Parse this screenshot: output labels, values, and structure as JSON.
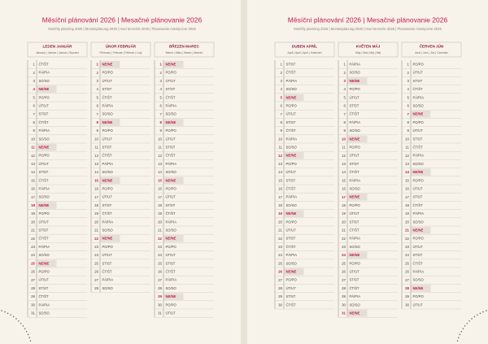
{
  "pages": [
    {
      "title": "Měsíční plánování 2026 | Mesačné plánovanie 2026",
      "subtitle": "Monthly planning 2026 | Monatsplanung 2026 | Havi tervezés 2026 | Planowanie miesięczne 2026",
      "months": [
        {
          "name": "LEDEN JANUÁR",
          "subname": "January | Januar | Január | Styczeń",
          "days": [
            {
              "n": 1,
              "d": "ČT/ŠT"
            },
            {
              "n": 2,
              "d": "PÁ/PIA"
            },
            {
              "n": 3,
              "d": "SO/SO"
            },
            {
              "n": 4,
              "d": "NE/NE",
              "sun": true
            },
            {
              "n": 5,
              "d": "PO/PO"
            },
            {
              "n": 6,
              "d": "ÚT/UT"
            },
            {
              "n": 7,
              "d": "ST/ST"
            },
            {
              "n": 8,
              "d": "ČT/ŠT"
            },
            {
              "n": 9,
              "d": "PÁ/PIA"
            },
            {
              "n": 10,
              "d": "SO/SO"
            },
            {
              "n": 11,
              "d": "NE/NE",
              "sun": true
            },
            {
              "n": 12,
              "d": "PO/PO"
            },
            {
              "n": 13,
              "d": "ÚT/UT"
            },
            {
              "n": 14,
              "d": "ST/ST"
            },
            {
              "n": 15,
              "d": "ČT/ŠT"
            },
            {
              "n": 16,
              "d": "PÁ/PIA"
            },
            {
              "n": 17,
              "d": "SO/SO"
            },
            {
              "n": 18,
              "d": "NE/NE",
              "sun": true
            },
            {
              "n": 19,
              "d": "PO/PO"
            },
            {
              "n": 20,
              "d": "ÚT/UT"
            },
            {
              "n": 21,
              "d": "ST/ST"
            },
            {
              "n": 22,
              "d": "ČT/ŠT"
            },
            {
              "n": 23,
              "d": "PÁ/PIA"
            },
            {
              "n": 24,
              "d": "SO/SO"
            },
            {
              "n": 25,
              "d": "NE/NE",
              "sun": true
            },
            {
              "n": 26,
              "d": "PO/PO"
            },
            {
              "n": 27,
              "d": "ÚT/UT"
            },
            {
              "n": 28,
              "d": "ST/ST"
            },
            {
              "n": 29,
              "d": "ČT/ŠT"
            },
            {
              "n": 30,
              "d": "PÁ/PIA"
            },
            {
              "n": 31,
              "d": "SO/SO"
            }
          ]
        },
        {
          "name": "ÚNOR FEBRUÁR",
          "subname": "February | Februar | Február | Luty",
          "days": [
            {
              "n": 1,
              "d": "NE/NE",
              "sun": true
            },
            {
              "n": 2,
              "d": "PO/PO"
            },
            {
              "n": 3,
              "d": "ÚT/UT"
            },
            {
              "n": 4,
              "d": "ST/ST"
            },
            {
              "n": 5,
              "d": "ČT/ŠT"
            },
            {
              "n": 6,
              "d": "PÁ/PIA"
            },
            {
              "n": 7,
              "d": "SO/SO"
            },
            {
              "n": 8,
              "d": "NE/NE",
              "sun": true
            },
            {
              "n": 9,
              "d": "PO/PO"
            },
            {
              "n": 10,
              "d": "ÚT/UT"
            },
            {
              "n": 11,
              "d": "ST/ST"
            },
            {
              "n": 12,
              "d": "ČT/ŠT"
            },
            {
              "n": 13,
              "d": "PÁ/PIA"
            },
            {
              "n": 14,
              "d": "SO/SO"
            },
            {
              "n": 15,
              "d": "NE/NE",
              "sun": true
            },
            {
              "n": 16,
              "d": "PO/PO"
            },
            {
              "n": 17,
              "d": "ÚT/UT"
            },
            {
              "n": 18,
              "d": "ST/ST"
            },
            {
              "n": 19,
              "d": "ČT/ŠT"
            },
            {
              "n": 20,
              "d": "PÁ/PIA"
            },
            {
              "n": 21,
              "d": "SO/SO"
            },
            {
              "n": 22,
              "d": "NE/NE",
              "sun": true
            },
            {
              "n": 23,
              "d": "PO/PO"
            },
            {
              "n": 24,
              "d": "ÚT/UT"
            },
            {
              "n": 25,
              "d": "ST/ST"
            },
            {
              "n": 26,
              "d": "ČT/ŠT"
            },
            {
              "n": 27,
              "d": "PÁ/PIA"
            },
            {
              "n": 28,
              "d": "SO/SO"
            }
          ]
        },
        {
          "name": "BŘEZEN MAREC",
          "subname": "March | März | Marec | Marzec",
          "days": [
            {
              "n": 1,
              "d": "NE/NE",
              "sun": true
            },
            {
              "n": 2,
              "d": "PO/PO"
            },
            {
              "n": 3,
              "d": "ÚT/UT"
            },
            {
              "n": 4,
              "d": "ST/ST"
            },
            {
              "n": 5,
              "d": "ČT/ŠT"
            },
            {
              "n": 6,
              "d": "PÁ/PIA"
            },
            {
              "n": 7,
              "d": "SO/SO"
            },
            {
              "n": 8,
              "d": "NE/NE",
              "sun": true
            },
            {
              "n": 9,
              "d": "PO/PO"
            },
            {
              "n": 10,
              "d": "ÚT/UT"
            },
            {
              "n": 11,
              "d": "ST/ST"
            },
            {
              "n": 12,
              "d": "ČT/ŠT"
            },
            {
              "n": 13,
              "d": "PÁ/PIA"
            },
            {
              "n": 14,
              "d": "SO/SO"
            },
            {
              "n": 15,
              "d": "NE/NE",
              "sun": true
            },
            {
              "n": 16,
              "d": "PO/PO"
            },
            {
              "n": 17,
              "d": "ÚT/UT"
            },
            {
              "n": 18,
              "d": "ST/ST"
            },
            {
              "n": 19,
              "d": "ČT/ŠT"
            },
            {
              "n": 20,
              "d": "PÁ/PIA"
            },
            {
              "n": 21,
              "d": "SO/SO"
            },
            {
              "n": 22,
              "d": "NE/NE",
              "sun": true
            },
            {
              "n": 23,
              "d": "PO/PO"
            },
            {
              "n": 24,
              "d": "ÚT/UT"
            },
            {
              "n": 25,
              "d": "ST/ST"
            },
            {
              "n": 26,
              "d": "ČT/ŠT"
            },
            {
              "n": 27,
              "d": "PÁ/PIA"
            },
            {
              "n": 28,
              "d": "SO/SO"
            },
            {
              "n": 29,
              "d": "NE/NE",
              "sun": true
            },
            {
              "n": 30,
              "d": "PO/PO"
            },
            {
              "n": 31,
              "d": "ÚT/UT"
            }
          ]
        }
      ]
    },
    {
      "title": "Měsíční plánování 2026 | Mesačné plánovanie 2026",
      "subtitle": "Monthly planning 2026 | Monatsplanung 2026 | Havi tervezés 2026 | Planowanie miesięczne 2026",
      "months": [
        {
          "name": "DUBEN APRÍL",
          "subname": "April | April | Apríl | Kwiecień",
          "days": [
            {
              "n": 1,
              "d": "ST/ST"
            },
            {
              "n": 2,
              "d": "ČT/ŠT"
            },
            {
              "n": 3,
              "d": "PÁ/PIA"
            },
            {
              "n": 4,
              "d": "SO/SO"
            },
            {
              "n": 5,
              "d": "NE/NE",
              "sun": true
            },
            {
              "n": 6,
              "d": "PO/PO"
            },
            {
              "n": 7,
              "d": "ÚT/UT"
            },
            {
              "n": 8,
              "d": "ST/ST"
            },
            {
              "n": 9,
              "d": "ČT/ŠT"
            },
            {
              "n": 10,
              "d": "PÁ/PIA"
            },
            {
              "n": 11,
              "d": "SO/SO"
            },
            {
              "n": 12,
              "d": "NE/NE",
              "sun": true
            },
            {
              "n": 13,
              "d": "PO/PO"
            },
            {
              "n": 14,
              "d": "ÚT/UT"
            },
            {
              "n": 15,
              "d": "ST/ST"
            },
            {
              "n": 16,
              "d": "ČT/ŠT"
            },
            {
              "n": 17,
              "d": "PÁ/PIA"
            },
            {
              "n": 18,
              "d": "SO/SO"
            },
            {
              "n": 19,
              "d": "NE/NE",
              "sun": true
            },
            {
              "n": 20,
              "d": "PO/PO"
            },
            {
              "n": 21,
              "d": "ÚT/UT"
            },
            {
              "n": 22,
              "d": "ST/ST"
            },
            {
              "n": 23,
              "d": "ČT/ŠT"
            },
            {
              "n": 24,
              "d": "PÁ/PIA"
            },
            {
              "n": 25,
              "d": "SO/SO"
            },
            {
              "n": 26,
              "d": "NE/NE",
              "sun": true
            },
            {
              "n": 27,
              "d": "PO/PO"
            },
            {
              "n": 28,
              "d": "ÚT/UT"
            },
            {
              "n": 29,
              "d": "ST/ST"
            },
            {
              "n": 30,
              "d": "ČT/ŠT"
            }
          ]
        },
        {
          "name": "KVĚTEN MÁJ",
          "subname": "May | Mai | Máj | Maj",
          "days": [
            {
              "n": 1,
              "d": "PÁ/PIA"
            },
            {
              "n": 2,
              "d": "SO/SO"
            },
            {
              "n": 3,
              "d": "NE/NE",
              "sun": true
            },
            {
              "n": 4,
              "d": "PO/PO"
            },
            {
              "n": 5,
              "d": "ÚT/UT"
            },
            {
              "n": 6,
              "d": "ST/ST"
            },
            {
              "n": 7,
              "d": "ČT/ŠT"
            },
            {
              "n": 8,
              "d": "PÁ/PIA"
            },
            {
              "n": 9,
              "d": "SO/SO"
            },
            {
              "n": 10,
              "d": "NE/NE",
              "sun": true
            },
            {
              "n": 11,
              "d": "PO/PO"
            },
            {
              "n": 12,
              "d": "ÚT/UT"
            },
            {
              "n": 13,
              "d": "ST/ST"
            },
            {
              "n": 14,
              "d": "ČT/ŠT"
            },
            {
              "n": 15,
              "d": "PÁ/PIA"
            },
            {
              "n": 16,
              "d": "SO/SO"
            },
            {
              "n": 17,
              "d": "NE/NE",
              "sun": true
            },
            {
              "n": 18,
              "d": "PO/PO"
            },
            {
              "n": 19,
              "d": "ÚT/UT"
            },
            {
              "n": 20,
              "d": "ST/ST"
            },
            {
              "n": 21,
              "d": "ČT/ŠT"
            },
            {
              "n": 22,
              "d": "PÁ/PIA"
            },
            {
              "n": 23,
              "d": "SO/SO"
            },
            {
              "n": 24,
              "d": "NE/NE",
              "sun": true
            },
            {
              "n": 25,
              "d": "PO/PO"
            },
            {
              "n": 26,
              "d": "ÚT/UT"
            },
            {
              "n": 27,
              "d": "ST/ST"
            },
            {
              "n": 28,
              "d": "ČT/ŠT"
            },
            {
              "n": 29,
              "d": "PÁ/PIA"
            },
            {
              "n": 30,
              "d": "SO/SO"
            },
            {
              "n": 31,
              "d": "NE/NE",
              "sun": true
            }
          ]
        },
        {
          "name": "ČERVEN JÚN",
          "subname": "June | Juni | Jún | Czerwiec",
          "days": [
            {
              "n": 1,
              "d": "PO/PO"
            },
            {
              "n": 2,
              "d": "ÚT/UT"
            },
            {
              "n": 3,
              "d": "ST/ST"
            },
            {
              "n": 4,
              "d": "ČT/ŠT"
            },
            {
              "n": 5,
              "d": "PÁ/PIA"
            },
            {
              "n": 6,
              "d": "SO/SO"
            },
            {
              "n": 7,
              "d": "NE/NE",
              "sun": true
            },
            {
              "n": 8,
              "d": "PO/PO"
            },
            {
              "n": 9,
              "d": "ÚT/UT"
            },
            {
              "n": 10,
              "d": "ST/ST"
            },
            {
              "n": 11,
              "d": "ČT/ŠT"
            },
            {
              "n": 12,
              "d": "PÁ/PIA"
            },
            {
              "n": 13,
              "d": "SO/SO"
            },
            {
              "n": 14,
              "d": "NE/NE",
              "sun": true
            },
            {
              "n": 15,
              "d": "PO/PO"
            },
            {
              "n": 16,
              "d": "ÚT/UT"
            },
            {
              "n": 17,
              "d": "ST/ST"
            },
            {
              "n": 18,
              "d": "ČT/ŠT"
            },
            {
              "n": 19,
              "d": "PÁ/PIA"
            },
            {
              "n": 20,
              "d": "SO/SO"
            },
            {
              "n": 21,
              "d": "NE/NE",
              "sun": true
            },
            {
              "n": 22,
              "d": "PO/PO"
            },
            {
              "n": 23,
              "d": "ÚT/UT"
            },
            {
              "n": 24,
              "d": "ST/ST"
            },
            {
              "n": 25,
              "d": "ČT/ŠT"
            },
            {
              "n": 26,
              "d": "PÁ/PIA"
            },
            {
              "n": 27,
              "d": "SO/SO"
            },
            {
              "n": 28,
              "d": "NE/NE",
              "sun": true
            },
            {
              "n": 29,
              "d": "PO/PO"
            },
            {
              "n": 30,
              "d": "ÚT/UT"
            }
          ]
        }
      ]
    }
  ]
}
